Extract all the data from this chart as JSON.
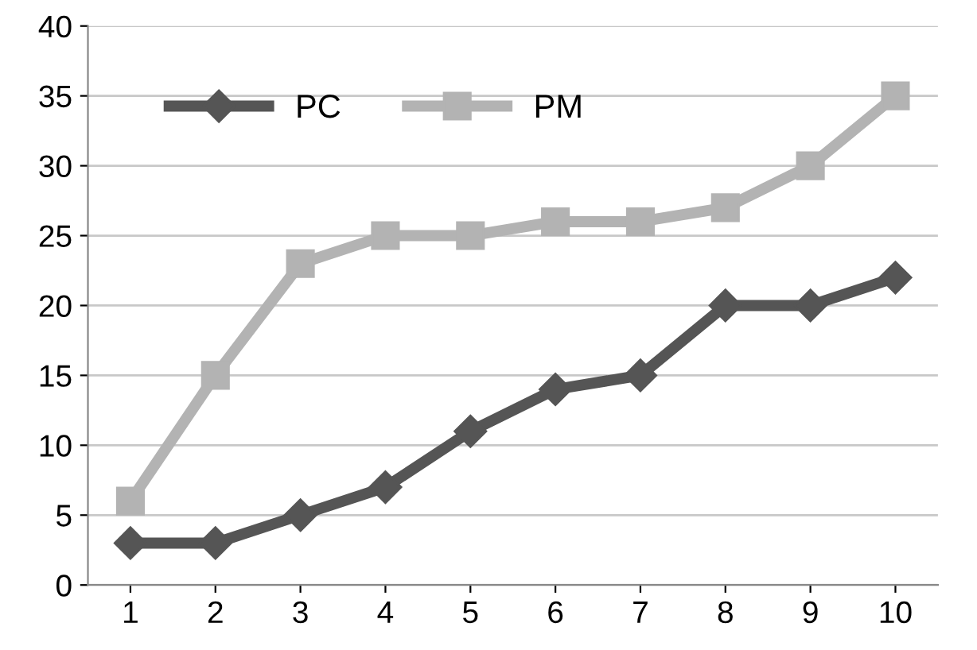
{
  "chart_data": {
    "type": "line",
    "categories": [
      "1",
      "2",
      "3",
      "4",
      "5",
      "6",
      "7",
      "8",
      "9",
      "10"
    ],
    "series": [
      {
        "name": "PC",
        "color": "#555555",
        "marker": "diamond",
        "values": [
          3,
          3,
          5,
          7,
          11,
          14,
          15,
          20,
          20,
          22
        ]
      },
      {
        "name": "PM",
        "color": "#b3b3b3",
        "marker": "square",
        "values": [
          6,
          15,
          23,
          25,
          25,
          26,
          26,
          27,
          30,
          35
        ]
      }
    ],
    "ylim": [
      0,
      40
    ],
    "yticks": [
      0,
      5,
      10,
      15,
      20,
      25,
      30,
      35,
      40
    ],
    "grid": "y",
    "legend": "top left",
    "line_style": "solid"
  }
}
